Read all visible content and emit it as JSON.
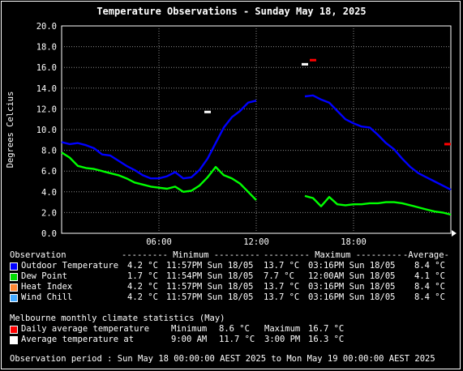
{
  "chart_data": {
    "type": "line",
    "title": "Temperature Observations - Sunday May 18, 2025",
    "ylabel": "Degrees Celcius",
    "xlabel": "",
    "ylim": [
      0,
      20
    ],
    "xlim": [
      0,
      24
    ],
    "y_ticks": [
      "0.0",
      "2.0",
      "4.0",
      "6.0",
      "8.0",
      "10.0",
      "12.0",
      "14.0",
      "16.0",
      "18.0",
      "20.0"
    ],
    "x_ticks": [
      {
        "label": "06:00",
        "x": 6
      },
      {
        "label": "12:00",
        "x": 12
      },
      {
        "label": "18:00",
        "x": 18
      }
    ],
    "grid": true,
    "series": [
      {
        "name": "Outdoor Temperature",
        "color": "#0000ff",
        "segments": [
          [
            [
              0,
              8.8
            ],
            [
              0.5,
              8.6
            ],
            [
              1,
              8.7
            ],
            [
              1.5,
              8.5
            ],
            [
              2,
              8.2
            ],
            [
              2.5,
              7.6
            ],
            [
              3,
              7.5
            ],
            [
              3.5,
              7.0
            ],
            [
              4,
              6.5
            ],
            [
              4.5,
              6.1
            ],
            [
              5,
              5.6
            ],
            [
              5.5,
              5.3
            ],
            [
              6,
              5.3
            ],
            [
              6.5,
              5.5
            ],
            [
              7,
              5.9
            ],
            [
              7.5,
              5.3
            ],
            [
              8,
              5.4
            ],
            [
              8.5,
              6.1
            ],
            [
              9,
              7.2
            ],
            [
              9.5,
              8.7
            ],
            [
              10,
              10.2
            ],
            [
              10.5,
              11.2
            ],
            [
              11,
              11.8
            ],
            [
              11.5,
              12.6
            ],
            [
              12,
              12.8
            ]
          ],
          [
            [
              15,
              13.2
            ],
            [
              15.5,
              13.3
            ],
            [
              16,
              12.9
            ],
            [
              16.5,
              12.6
            ],
            [
              17,
              11.8
            ],
            [
              17.5,
              11.0
            ],
            [
              18,
              10.6
            ],
            [
              18.5,
              10.3
            ],
            [
              19,
              10.2
            ],
            [
              19.5,
              9.5
            ],
            [
              20,
              8.7
            ],
            [
              20.5,
              8.1
            ],
            [
              21,
              7.2
            ],
            [
              21.5,
              6.4
            ],
            [
              22,
              5.8
            ],
            [
              22.5,
              5.4
            ],
            [
              23,
              5.0
            ],
            [
              23.5,
              4.6
            ],
            [
              24,
              4.2
            ]
          ]
        ]
      },
      {
        "name": "Dew Point",
        "color": "#00ff00",
        "segments": [
          [
            [
              0,
              7.8
            ],
            [
              0.5,
              7.3
            ],
            [
              1,
              6.5
            ],
            [
              1.5,
              6.3
            ],
            [
              2,
              6.2
            ],
            [
              2.5,
              6.0
            ],
            [
              3,
              5.8
            ],
            [
              3.5,
              5.6
            ],
            [
              4,
              5.3
            ],
            [
              4.5,
              4.9
            ],
            [
              5,
              4.7
            ],
            [
              5.5,
              4.5
            ],
            [
              6,
              4.4
            ],
            [
              6.5,
              4.3
            ],
            [
              7,
              4.5
            ],
            [
              7.5,
              4.0
            ],
            [
              8,
              4.1
            ],
            [
              8.5,
              4.6
            ],
            [
              9,
              5.4
            ],
            [
              9.5,
              6.4
            ],
            [
              10,
              5.6
            ],
            [
              10.5,
              5.3
            ],
            [
              11,
              4.8
            ],
            [
              11.5,
              4.0
            ],
            [
              12,
              3.2
            ]
          ],
          [
            [
              15,
              3.6
            ],
            [
              15.5,
              3.4
            ],
            [
              16,
              2.6
            ],
            [
              16.5,
              3.5
            ],
            [
              17,
              2.8
            ],
            [
              17.5,
              2.7
            ],
            [
              18,
              2.8
            ],
            [
              18.5,
              2.8
            ],
            [
              19,
              2.9
            ],
            [
              19.5,
              2.9
            ],
            [
              20,
              3.0
            ],
            [
              20.5,
              3.0
            ],
            [
              21,
              2.9
            ],
            [
              21.5,
              2.7
            ],
            [
              22,
              2.5
            ],
            [
              22.5,
              2.3
            ],
            [
              23,
              2.1
            ],
            [
              23.5,
              2.0
            ],
            [
              24,
              1.8
            ]
          ]
        ]
      }
    ],
    "daily_average_marker": {
      "color": "#ff0000",
      "points": [
        [
          15.5,
          16.7
        ],
        [
          23.8,
          8.6
        ]
      ]
    },
    "average_at_marker": {
      "color": "#ffffff",
      "points": [
        [
          9.0,
          11.7
        ],
        [
          15.0,
          16.3
        ]
      ]
    }
  },
  "legend": {
    "header": {
      "observation": "Observation",
      "minimum": "--------- Minimum ---------",
      "maximum": "--------- Maximum ---------",
      "average": "-Average-"
    },
    "rows": [
      {
        "label": "Outdoor Temperature",
        "color": "#0000ff",
        "min": "4.2 °C",
        "min_time": "11:57PM Sun 18/05",
        "max": "13.7 °C",
        "max_time": "03:16PM Sun 18/05",
        "avg": "8.4 °C"
      },
      {
        "label": "Dew Point",
        "color": "#00dd00",
        "min": "1.7 °C",
        "min_time": "11:54PM Sun 18/05",
        "max": "7.7 °C",
        "max_time": "12:00AM Sun 18/05",
        "avg": "4.1 °C"
      },
      {
        "label": "Heat Index",
        "color": "#ff8833",
        "min": "4.2 °C",
        "min_time": "11:57PM Sun 18/05",
        "max": "13.7 °C",
        "max_time": "03:16PM Sun 18/05",
        "avg": "8.4 °C"
      },
      {
        "label": "Wind Chill",
        "color": "#44aaff",
        "min": "4.2 °C",
        "min_time": "11:57PM Sun 18/05",
        "max": "13.7 °C",
        "max_time": "03:16PM Sun 18/05",
        "avg": "8.4 °C"
      }
    ]
  },
  "climate": {
    "title": "Melbourne monthly climate statistics (May)",
    "daily_avg": {
      "label": "Daily average temperature",
      "color": "#ff0000",
      "min_label": "Minimum",
      "min": "8.6 °C",
      "max_label": "Maximum",
      "max": "16.7 °C"
    },
    "avg_at": {
      "label": "Average temperature at",
      "color": "#ffffff",
      "time1": "9:00 AM",
      "val1": "11.7 °C",
      "time2": "3:00 PM",
      "val2": "16.3 °C"
    }
  },
  "footer": "Observation period : Sun May 18 00:00:00 AEST 2025 to Mon May 19 00:00:00 AEST 2025"
}
